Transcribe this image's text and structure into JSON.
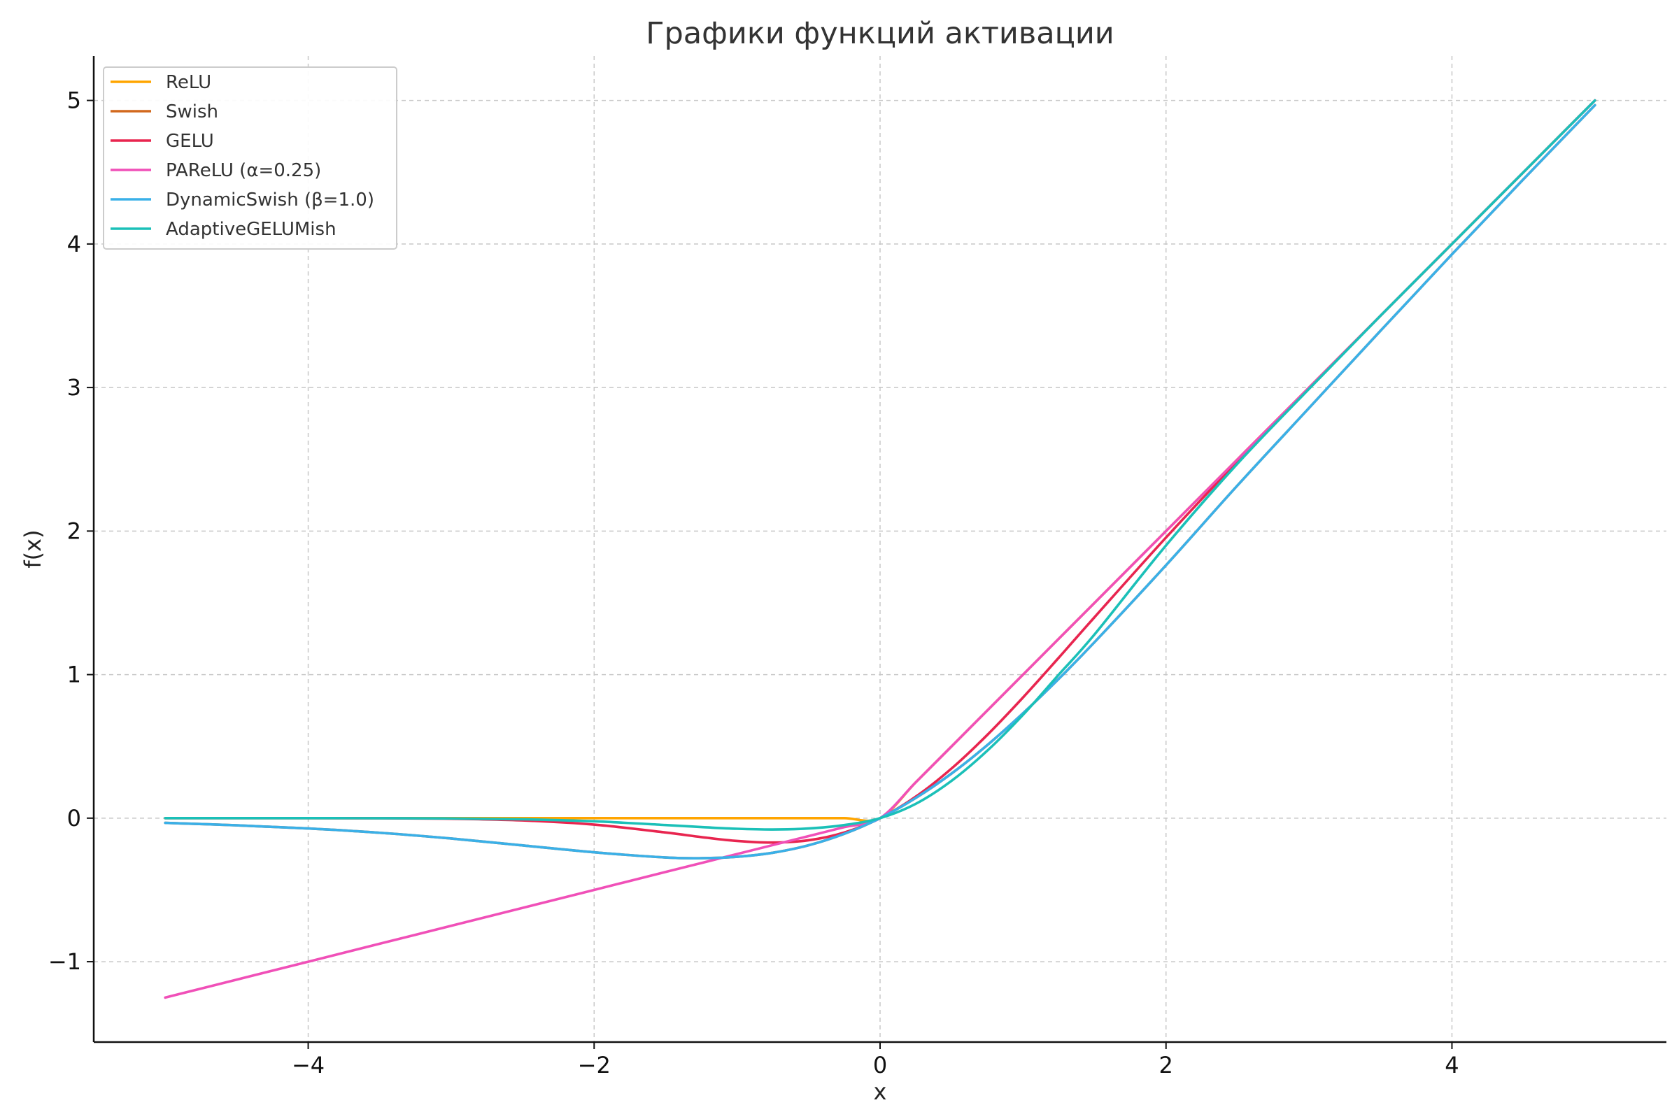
{
  "chart_data": {
    "type": "line",
    "title": "Графики функций активации",
    "xlabel": "x",
    "ylabel": "f(x)",
    "xlim": [
      -5.5,
      5.5
    ],
    "ylim": [
      -1.56,
      5.31
    ],
    "xticks": [
      -4,
      -2,
      0,
      2,
      4
    ],
    "xtick_labels": [
      "−4",
      "−2",
      "0",
      "2",
      "4"
    ],
    "yticks": [
      -1,
      0,
      1,
      2,
      3,
      4,
      5
    ],
    "ytick_labels": [
      "−1",
      "0",
      "1",
      "2",
      "3",
      "4",
      "5"
    ],
    "grid": true,
    "legend_position": "top-left",
    "x": [
      -5,
      -4.5,
      -4,
      -3.5,
      -3,
      -2.5,
      -2,
      -1.5,
      -1.25,
      -1,
      -0.75,
      -0.5,
      -0.25,
      0,
      0.25,
      0.5,
      0.75,
      1,
      1.25,
      1.5,
      2,
      2.5,
      3,
      3.5,
      4,
      4.5,
      5
    ],
    "series": [
      {
        "name": "ReLU",
        "color": "#FFA500",
        "values": [
          0,
          0,
          0,
          0,
          0,
          0,
          0,
          0,
          0,
          0,
          0,
          0,
          0,
          0,
          0.25,
          0.5,
          0.75,
          1,
          1.25,
          1.5,
          2,
          2.5,
          3,
          3.5,
          4,
          4.5,
          5
        ]
      },
      {
        "name": "Swish",
        "color": "#D2691E",
        "values": [
          -0.033,
          -0.05,
          -0.072,
          -0.102,
          -0.142,
          -0.19,
          -0.238,
          -0.274,
          -0.279,
          -0.269,
          -0.241,
          -0.189,
          -0.109,
          0,
          0.141,
          0.311,
          0.509,
          0.731,
          0.971,
          1.226,
          1.762,
          2.318,
          2.857,
          3.395,
          3.928,
          4.451,
          4.967
        ]
      },
      {
        "name": "GELU",
        "color": "#E8254F",
        "values": [
          0,
          0,
          -0.0001,
          -0.0008,
          -0.004,
          -0.016,
          -0.045,
          -0.1,
          -0.132,
          -0.159,
          -0.17,
          -0.154,
          -0.1,
          0,
          0.15,
          0.346,
          0.58,
          0.841,
          1.118,
          1.4,
          1.955,
          2.485,
          2.996,
          3.5,
          4,
          4.5,
          5
        ]
      },
      {
        "name": "PAReLU (α=0.25)",
        "color": "#F050B8",
        "values": [
          -1.25,
          -1.125,
          -1,
          -0.875,
          -0.75,
          -0.625,
          -0.5,
          -0.375,
          -0.3125,
          -0.25,
          -0.1875,
          -0.125,
          -0.0625,
          0,
          0.25,
          0.5,
          0.75,
          1,
          1.25,
          1.5,
          2,
          2.5,
          3,
          3.5,
          4,
          4.5,
          5
        ]
      },
      {
        "name": "DynamicSwish (β=1.0)",
        "color": "#3AB0E8",
        "values": [
          -0.033,
          -0.05,
          -0.072,
          -0.102,
          -0.142,
          -0.19,
          -0.238,
          -0.274,
          -0.279,
          -0.269,
          -0.241,
          -0.189,
          -0.109,
          0,
          0.141,
          0.311,
          0.509,
          0.731,
          0.971,
          1.226,
          1.762,
          2.318,
          2.857,
          3.395,
          3.928,
          4.451,
          4.967
        ]
      },
      {
        "name": "AdaptiveGELUMish",
        "color": "#1BC0B8",
        "values": [
          0,
          0,
          -0.0001,
          -0.0004,
          -0.002,
          -0.008,
          -0.022,
          -0.048,
          -0.062,
          -0.074,
          -0.079,
          -0.072,
          -0.048,
          0,
          0.1,
          0.26,
          0.47,
          0.72,
          1.0,
          1.28,
          1.9,
          2.47,
          2.99,
          3.5,
          4,
          4.5,
          5
        ]
      }
    ]
  }
}
